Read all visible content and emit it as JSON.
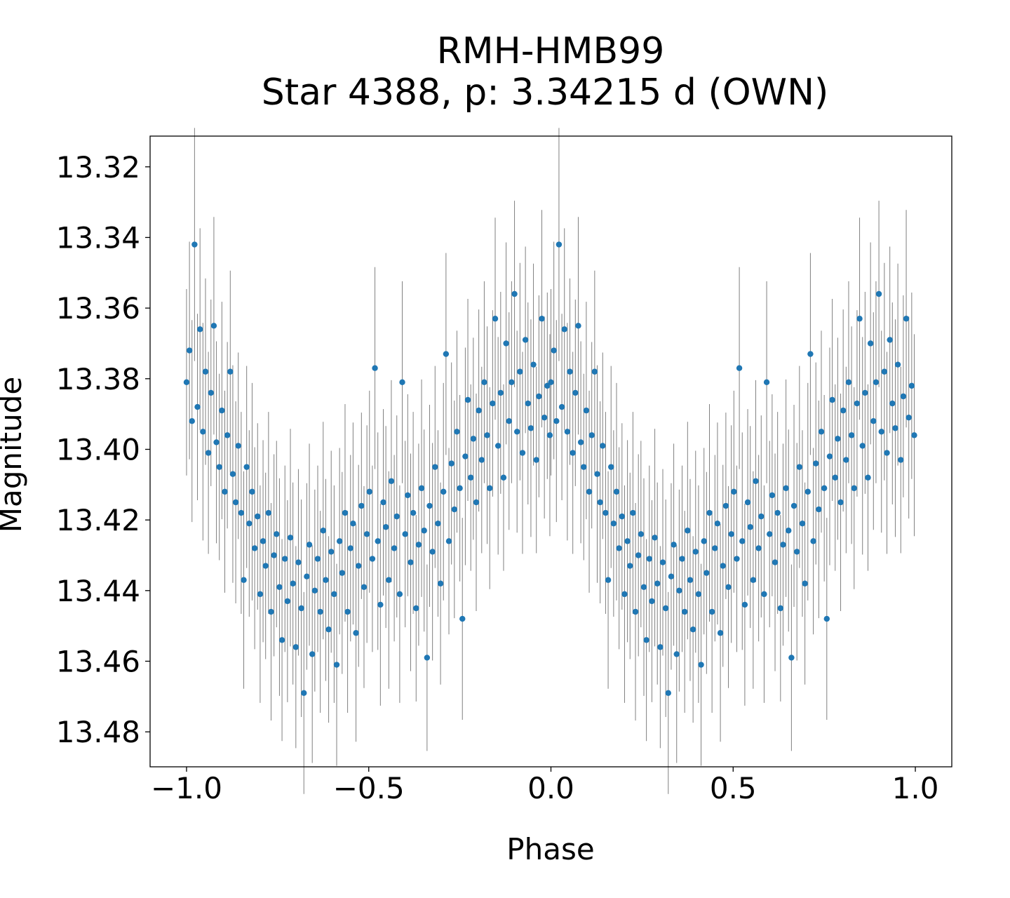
{
  "chart_data": {
    "type": "scatter",
    "title": "RMH-HMB99",
    "subtitle": "Star 4388, p: 3.34215 d (OWN)",
    "xlabel": "Phase",
    "ylabel": "Magnitude",
    "xlim": [
      -1.1,
      1.1
    ],
    "ylim": [
      13.4899,
      13.3113
    ],
    "y_inverted": true,
    "xticks": [
      -1.0,
      -0.5,
      0.0,
      0.5,
      1.0
    ],
    "xtick_labels": [
      "−1.0",
      "−0.5",
      "0.0",
      "0.5",
      "1.0"
    ],
    "yticks": [
      13.32,
      13.34,
      13.36,
      13.38,
      13.4,
      13.42,
      13.44,
      13.46,
      13.48
    ],
    "ytick_labels": [
      "13.32",
      "13.34",
      "13.36",
      "13.38",
      "13.40",
      "13.42",
      "13.44",
      "13.46",
      "13.48"
    ],
    "grid": false,
    "marker_color": "#1f77b4",
    "errorbar_color": "#808080",
    "phase_folded_repeat": "each point at phase p is also plotted at p-1",
    "points_columns": [
      "phase",
      "magnitude",
      "error"
    ],
    "points": [
      [
        0.0,
        13.381,
        0.012
      ],
      [
        0.008,
        13.372,
        0.014
      ],
      [
        0.015,
        13.392,
        0.013
      ],
      [
        0.022,
        13.342,
        0.015
      ],
      [
        0.03,
        13.388,
        0.012
      ],
      [
        0.037,
        13.366,
        0.013
      ],
      [
        0.045,
        13.395,
        0.014
      ],
      [
        0.052,
        13.378,
        0.012
      ],
      [
        0.06,
        13.401,
        0.013
      ],
      [
        0.067,
        13.384,
        0.012
      ],
      [
        0.075,
        13.365,
        0.014
      ],
      [
        0.082,
        13.398,
        0.013
      ],
      [
        0.09,
        13.405,
        0.012
      ],
      [
        0.097,
        13.389,
        0.014
      ],
      [
        0.105,
        13.412,
        0.013
      ],
      [
        0.112,
        13.396,
        0.012
      ],
      [
        0.12,
        13.378,
        0.013
      ],
      [
        0.127,
        13.407,
        0.014
      ],
      [
        0.135,
        13.415,
        0.013
      ],
      [
        0.142,
        13.399,
        0.012
      ],
      [
        0.15,
        13.418,
        0.013
      ],
      [
        0.157,
        13.437,
        0.014
      ],
      [
        0.165,
        13.405,
        0.013
      ],
      [
        0.172,
        13.421,
        0.012
      ],
      [
        0.18,
        13.412,
        0.014
      ],
      [
        0.187,
        13.428,
        0.013
      ],
      [
        0.195,
        13.419,
        0.012
      ],
      [
        0.202,
        13.441,
        0.014
      ],
      [
        0.21,
        13.426,
        0.013
      ],
      [
        0.217,
        13.433,
        0.012
      ],
      [
        0.225,
        13.418,
        0.013
      ],
      [
        0.232,
        13.446,
        0.014
      ],
      [
        0.24,
        13.43,
        0.013
      ],
      [
        0.247,
        13.424,
        0.012
      ],
      [
        0.255,
        13.439,
        0.014
      ],
      [
        0.262,
        13.454,
        0.013
      ],
      [
        0.27,
        13.431,
        0.012
      ],
      [
        0.277,
        13.443,
        0.013
      ],
      [
        0.285,
        13.425,
        0.014
      ],
      [
        0.292,
        13.438,
        0.013
      ],
      [
        0.3,
        13.456,
        0.013
      ],
      [
        0.307,
        13.432,
        0.012
      ],
      [
        0.315,
        13.445,
        0.014
      ],
      [
        0.322,
        13.469,
        0.013
      ],
      [
        0.33,
        13.436,
        0.012
      ],
      [
        0.337,
        13.427,
        0.013
      ],
      [
        0.345,
        13.458,
        0.014
      ],
      [
        0.352,
        13.44,
        0.013
      ],
      [
        0.36,
        13.431,
        0.012
      ],
      [
        0.367,
        13.446,
        0.013
      ],
      [
        0.375,
        13.423,
        0.014
      ],
      [
        0.382,
        13.437,
        0.013
      ],
      [
        0.39,
        13.451,
        0.012
      ],
      [
        0.397,
        13.429,
        0.013
      ],
      [
        0.405,
        13.441,
        0.014
      ],
      [
        0.412,
        13.461,
        0.013
      ],
      [
        0.42,
        13.426,
        0.012
      ],
      [
        0.427,
        13.435,
        0.013
      ],
      [
        0.435,
        13.418,
        0.014
      ],
      [
        0.442,
        13.446,
        0.013
      ],
      [
        0.45,
        13.428,
        0.012
      ],
      [
        0.457,
        13.421,
        0.013
      ],
      [
        0.465,
        13.452,
        0.014
      ],
      [
        0.472,
        13.433,
        0.013
      ],
      [
        0.48,
        13.416,
        0.012
      ],
      [
        0.487,
        13.439,
        0.013
      ],
      [
        0.495,
        13.424,
        0.014
      ],
      [
        0.502,
        13.412,
        0.013
      ],
      [
        0.51,
        13.431,
        0.012
      ],
      [
        0.517,
        13.377,
        0.013
      ],
      [
        0.525,
        13.426,
        0.014
      ],
      [
        0.532,
        13.444,
        0.013
      ],
      [
        0.54,
        13.415,
        0.012
      ],
      [
        0.547,
        13.422,
        0.013
      ],
      [
        0.555,
        13.437,
        0.014
      ],
      [
        0.562,
        13.409,
        0.013
      ],
      [
        0.57,
        13.428,
        0.012
      ],
      [
        0.577,
        13.419,
        0.013
      ],
      [
        0.585,
        13.441,
        0.014
      ],
      [
        0.592,
        13.381,
        0.013
      ],
      [
        0.6,
        13.424,
        0.012
      ],
      [
        0.607,
        13.413,
        0.013
      ],
      [
        0.615,
        13.432,
        0.014
      ],
      [
        0.622,
        13.418,
        0.013
      ],
      [
        0.63,
        13.445,
        0.012
      ],
      [
        0.637,
        13.427,
        0.013
      ],
      [
        0.645,
        13.411,
        0.014
      ],
      [
        0.652,
        13.423,
        0.013
      ],
      [
        0.66,
        13.459,
        0.012
      ],
      [
        0.667,
        13.416,
        0.013
      ],
      [
        0.675,
        13.429,
        0.014
      ],
      [
        0.682,
        13.405,
        0.013
      ],
      [
        0.69,
        13.421,
        0.012
      ],
      [
        0.697,
        13.438,
        0.013
      ],
      [
        0.705,
        13.412,
        0.014
      ],
      [
        0.712,
        13.373,
        0.013
      ],
      [
        0.72,
        13.426,
        0.012
      ],
      [
        0.727,
        13.404,
        0.013
      ],
      [
        0.735,
        13.417,
        0.014
      ],
      [
        0.742,
        13.395,
        0.013
      ],
      [
        0.75,
        13.411,
        0.012
      ],
      [
        0.757,
        13.448,
        0.013
      ],
      [
        0.765,
        13.402,
        0.014
      ],
      [
        0.772,
        13.386,
        0.013
      ],
      [
        0.78,
        13.408,
        0.012
      ],
      [
        0.787,
        13.397,
        0.013
      ],
      [
        0.795,
        13.415,
        0.014
      ],
      [
        0.802,
        13.389,
        0.013
      ],
      [
        0.81,
        13.403,
        0.012
      ],
      [
        0.817,
        13.381,
        0.013
      ],
      [
        0.825,
        13.396,
        0.014
      ],
      [
        0.832,
        13.411,
        0.013
      ],
      [
        0.84,
        13.387,
        0.012
      ],
      [
        0.847,
        13.363,
        0.013
      ],
      [
        0.855,
        13.399,
        0.014
      ],
      [
        0.862,
        13.384,
        0.013
      ],
      [
        0.87,
        13.408,
        0.012
      ],
      [
        0.877,
        13.37,
        0.013
      ],
      [
        0.885,
        13.392,
        0.014
      ],
      [
        0.892,
        13.381,
        0.013
      ],
      [
        0.9,
        13.356,
        0.012
      ],
      [
        0.907,
        13.395,
        0.013
      ],
      [
        0.915,
        13.378,
        0.014
      ],
      [
        0.922,
        13.401,
        0.013
      ],
      [
        0.93,
        13.369,
        0.012
      ],
      [
        0.937,
        13.387,
        0.013
      ],
      [
        0.945,
        13.394,
        0.014
      ],
      [
        0.952,
        13.376,
        0.013
      ],
      [
        0.96,
        13.403,
        0.012
      ],
      [
        0.967,
        13.385,
        0.013
      ],
      [
        0.975,
        13.363,
        0.014
      ],
      [
        0.982,
        13.391,
        0.013
      ],
      [
        0.99,
        13.382,
        0.012
      ],
      [
        0.997,
        13.396,
        0.013
      ]
    ]
  }
}
